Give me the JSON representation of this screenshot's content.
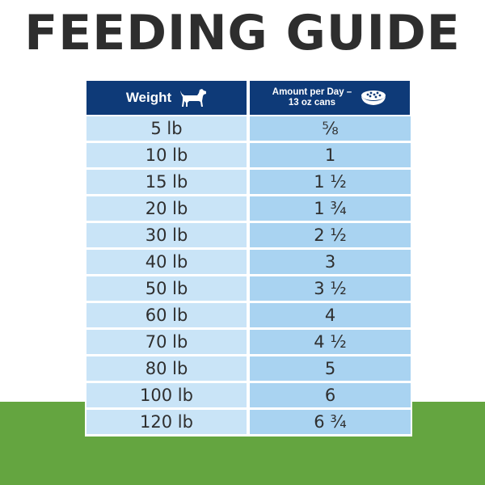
{
  "title": "FEEDING GUIDE",
  "colors": {
    "header_bg": "#0e3a78",
    "weight_cell_bg": "#c9e4f7",
    "amount_cell_bg": "#a9d3f1",
    "title_text": "#2e2e2e",
    "green_band": "#64a540"
  },
  "table": {
    "columns": [
      {
        "label": "Weight",
        "icon": "dog-icon"
      },
      {
        "label_line1": "Amount per Day –",
        "label_line2": "13 oz cans",
        "icon": "food-bowl-icon"
      }
    ],
    "rows": [
      {
        "weight": "5 lb",
        "amount": "⅝"
      },
      {
        "weight": "10 lb",
        "amount": "1"
      },
      {
        "weight": "15 lb",
        "amount": "1 ½"
      },
      {
        "weight": "20 lb",
        "amount": "1 ¾"
      },
      {
        "weight": "30 lb",
        "amount": "2 ½"
      },
      {
        "weight": "40 lb",
        "amount": "3"
      },
      {
        "weight": "50 lb",
        "amount": "3 ½"
      },
      {
        "weight": "60 lb",
        "amount": "4"
      },
      {
        "weight": "70 lb",
        "amount": "4 ½"
      },
      {
        "weight": "80 lb",
        "amount": "5"
      },
      {
        "weight": "100 lb",
        "amount": "6"
      },
      {
        "weight": "120 lb",
        "amount": "6 ¾"
      }
    ]
  }
}
